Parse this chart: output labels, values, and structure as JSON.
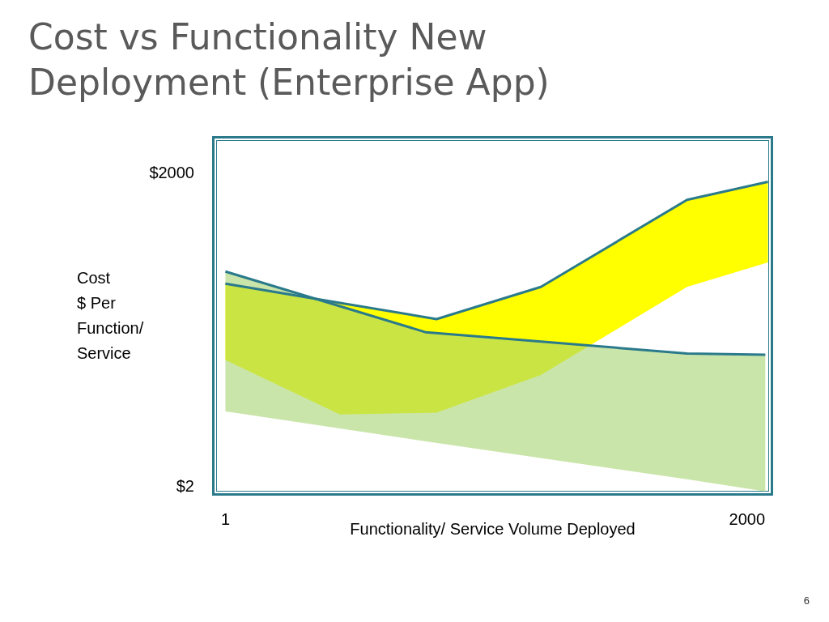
{
  "chart_data": {
    "type": "line",
    "title": "Cost vs Functionality New Deployment (Enterprise App)",
    "xlabel": "Functionality/ Service Volume Deployed",
    "ylabel": "Cost\n$ Per\nFunction/\nService",
    "log": "y",
    "xlim": [
      -50,
      2100
    ],
    "xticks": [
      1,
      2000
    ],
    "ylim": [
      1.6,
      4500
    ],
    "yticks": [
      {
        "value": 2,
        "label": "$2"
      },
      {
        "value": 2000,
        "label": "$2000"
      }
    ],
    "grid": false,
    "series": [
      {
        "color": "#2a7a8c",
        "x": [
          1,
          440,
          810,
          1210,
          1770,
          2080
        ],
        "values": [
          173,
          113,
          79,
          161,
          1100,
          1640
        ],
        "lower": [
          32,
          9.6,
          10,
          23,
          161,
          276
        ],
        "upper": [
          173,
          113,
          79,
          161,
          1100,
          1640
        ]
      },
      {
        "color": "#2a7a8c",
        "x": [
          1,
          770,
          1770,
          2070
        ],
        "values": [
          226,
          59,
          37,
          36
        ],
        "lower": [
          10.3,
          5.3,
          2.3,
          1.76
        ],
        "upper": [
          226,
          59,
          37,
          36
        ]
      }
    ],
    "annotations": [
      "6"
    ]
  }
}
